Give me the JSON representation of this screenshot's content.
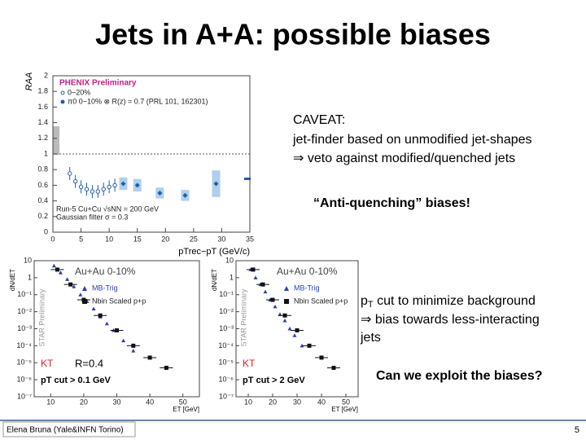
{
  "title": "Jets in A+A: possible biases",
  "caveat": {
    "heading": "CAVEAT:",
    "lines": [
      "jet-finder based on unmodified jet-shapes",
      "⇒ veto against modified/quenched jets"
    ]
  },
  "anti_quenching": "“Anti-quenching” biases!",
  "pt_cut": {
    "p": "p",
    "sub": "T",
    "rest": " cut to minimize background",
    "lines": [
      "⇒ bias towards less-interacting",
      "jets"
    ]
  },
  "question": "Can we exploit the biases?",
  "footer": "Elena Bruna (Yale&INFN Torino)",
  "page": "5",
  "chart_data": [
    {
      "type": "scatter",
      "title": "PHENIX Preliminary",
      "ylabel": "RAA",
      "xlabel": "pTrec−pT (GeV/c)",
      "annotations": [
        "Run-5 Cu+Cu √sNN = 200 GeV",
        "Gaussian filter σ = 0.3"
      ],
      "xlim": [
        0,
        35
      ],
      "xticks": [
        0,
        5,
        10,
        15,
        20,
        25,
        30,
        35
      ],
      "ylim": [
        0,
        2
      ],
      "yticks": [
        0,
        0.2,
        0.4,
        0.6,
        0.8,
        1,
        1.2,
        1.4,
        1.6,
        1.8,
        2
      ],
      "series": [
        {
          "name": "0−20%",
          "color": "#1f5fa8",
          "x": [
            3,
            4,
            5,
            6,
            7,
            8,
            9,
            10,
            11
          ],
          "values": [
            0.75,
            0.65,
            0.58,
            0.55,
            0.52,
            0.52,
            0.55,
            0.58,
            0.6
          ]
        },
        {
          "name": "π0 0−10% ⊗ R(z) = 0.7 (PRL 101, 162301)",
          "color": "#1f5fa8",
          "x": [
            12.5,
            15,
            19,
            23.5,
            29
          ],
          "values": [
            0.62,
            0.6,
            0.5,
            0.47,
            0.62
          ],
          "errors": [
            0.08,
            0.08,
            0.07,
            0.07,
            0.17
          ]
        }
      ]
    },
    {
      "type": "log-scatter",
      "title": "Au+Au 0-10%",
      "ylabel": "dN/dET",
      "xlabel": "ET [GeV]",
      "watermark": "STAR Preliminary",
      "algo": "KT",
      "radius": "R=0.4",
      "cut": "pT cut > 0.1 GeV",
      "xlim": [
        5,
        55
      ],
      "xticks": [
        10,
        20,
        30,
        40,
        50
      ],
      "ylim": [
        1e-07,
        10
      ],
      "yticks": [
        {
          "value": 1e-07,
          "label": "10⁻⁷"
        },
        {
          "value": 1e-06,
          "label": "10⁻⁶"
        },
        {
          "value": 1e-05,
          "label": "10⁻⁵"
        },
        {
          "value": 0.0001,
          "label": "10⁻⁴"
        },
        {
          "value": 0.001,
          "label": "10⁻³"
        },
        {
          "value": 0.01,
          "label": "10⁻²"
        },
        {
          "value": 0.1,
          "label": "10⁻¹"
        },
        1,
        10
      ],
      "series": [
        {
          "name": "MB-Trig",
          "color": "#2b3fb0",
          "x": [
            11,
            13,
            15,
            17,
            19,
            21,
            23,
            25,
            27,
            29,
            32,
            35
          ],
          "values": [
            5,
            2,
            0.8,
            0.3,
            0.1,
            0.04,
            0.015,
            0.005,
            0.002,
            0.0008,
            0.0002,
            5e-05
          ]
        },
        {
          "name": "Nbin Scaled p+p",
          "color": "#111111",
          "x": [
            12,
            16,
            20,
            25,
            30,
            35,
            40,
            45
          ],
          "values": [
            3,
            0.4,
            0.05,
            0.006,
            0.0008,
            0.0001,
            2e-05,
            5e-06
          ]
        }
      ]
    },
    {
      "type": "log-scatter",
      "title": "Au+Au 0-10%",
      "ylabel": "dN/dET",
      "xlabel": "ET [GeV]",
      "watermark": "STAR Preliminary",
      "algo": "KT",
      "cut": "pT cut > 2 GeV",
      "xlim": [
        5,
        55
      ],
      "xticks": [
        10,
        20,
        30,
        40,
        50
      ],
      "ylim": [
        1e-07,
        10
      ],
      "yticks": [
        {
          "value": 1e-07,
          "label": "10⁻⁷"
        },
        {
          "value": 1e-06,
          "label": "10⁻⁶"
        },
        {
          "value": 1e-05,
          "label": "10⁻⁵"
        },
        {
          "value": 0.0001,
          "label": "10⁻⁴"
        },
        {
          "value": 0.001,
          "label": "10⁻³"
        },
        {
          "value": 0.01,
          "label": "10⁻²"
        },
        {
          "value": 0.1,
          "label": "10⁻¹"
        },
        1,
        10
      ],
      "series": [
        {
          "name": "MB-Trig",
          "color": "#2b3fb0",
          "x": [
            11,
            13,
            15,
            17,
            19,
            21,
            23,
            25,
            27,
            29,
            32
          ],
          "values": [
            3,
            1,
            0.4,
            0.15,
            0.05,
            0.02,
            0.007,
            0.003,
            0.001,
            0.0004,
            0.0001
          ]
        },
        {
          "name": "Nbin Scaled p+p",
          "color": "#111111",
          "x": [
            12,
            16,
            20,
            25,
            30,
            35,
            40,
            45
          ],
          "values": [
            3,
            0.4,
            0.05,
            0.006,
            0.0008,
            0.0001,
            2e-05,
            5e-06
          ]
        }
      ]
    }
  ]
}
